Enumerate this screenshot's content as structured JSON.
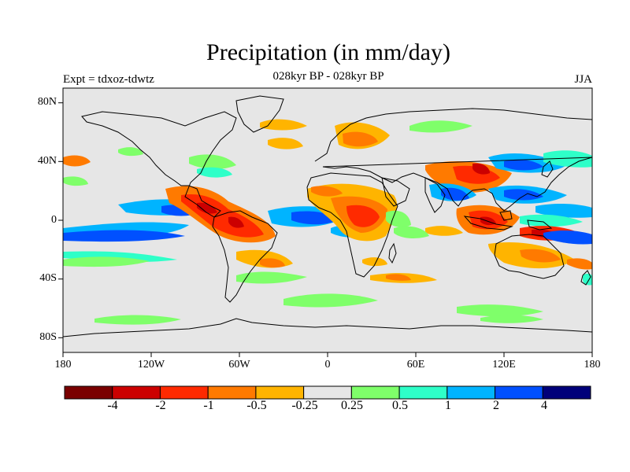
{
  "title": "Precipitation (in mm/day)",
  "subtitle": "028kyr BP - 028kyr BP",
  "left_label": "Expt = tdxoz-tdwtz",
  "right_label": "JJA",
  "lat_ticks": [
    "80N",
    "40N",
    "0",
    "40S",
    "80S"
  ],
  "lon_ticks": [
    "180",
    "120W",
    "60W",
    "0",
    "60E",
    "120E",
    "180"
  ],
  "colorbar": {
    "colors": [
      "#7a0000",
      "#cc0000",
      "#ff2a00",
      "#ff7a00",
      "#ffb400",
      "#e6e6e6",
      "#7fff6a",
      "#2effc8",
      "#00b4ff",
      "#0050ff",
      "#00007a"
    ],
    "labels": [
      "-4",
      "-2",
      "-1",
      "-0.5",
      "-0.25",
      "0.25",
      "0.5",
      "1",
      "2",
      "4"
    ]
  },
  "colors": {
    "background": "#e6e6e6",
    "coast": "#000000"
  },
  "map_anomalies": [
    {
      "lon": -150,
      "lat": 38,
      "level": 3
    },
    {
      "lon": -110,
      "lat": 8,
      "level": 1
    },
    {
      "lon": -75,
      "lat": 3,
      "level": 1
    },
    {
      "lon": -60,
      "lat": -6,
      "level": 2
    },
    {
      "lon": -115,
      "lat": 2,
      "level": 10
    },
    {
      "lon": -50,
      "lat": -32,
      "level": 4
    },
    {
      "lon": -15,
      "lat": 2,
      "level": 9
    },
    {
      "lon": 20,
      "lat": 5,
      "level": 1
    },
    {
      "lon": 20,
      "lat": 65,
      "level": 3
    },
    {
      "lon": 80,
      "lat": 15,
      "level": 9
    },
    {
      "lon": 95,
      "lat": 35,
      "level": 1
    },
    {
      "lon": 110,
      "lat": 28,
      "level": 9
    },
    {
      "lon": 120,
      "lat": 2,
      "level": 1
    },
    {
      "lon": 150,
      "lat": 12,
      "level": 9
    },
    {
      "lon": 135,
      "lat": -22,
      "level": 3
    }
  ]
}
